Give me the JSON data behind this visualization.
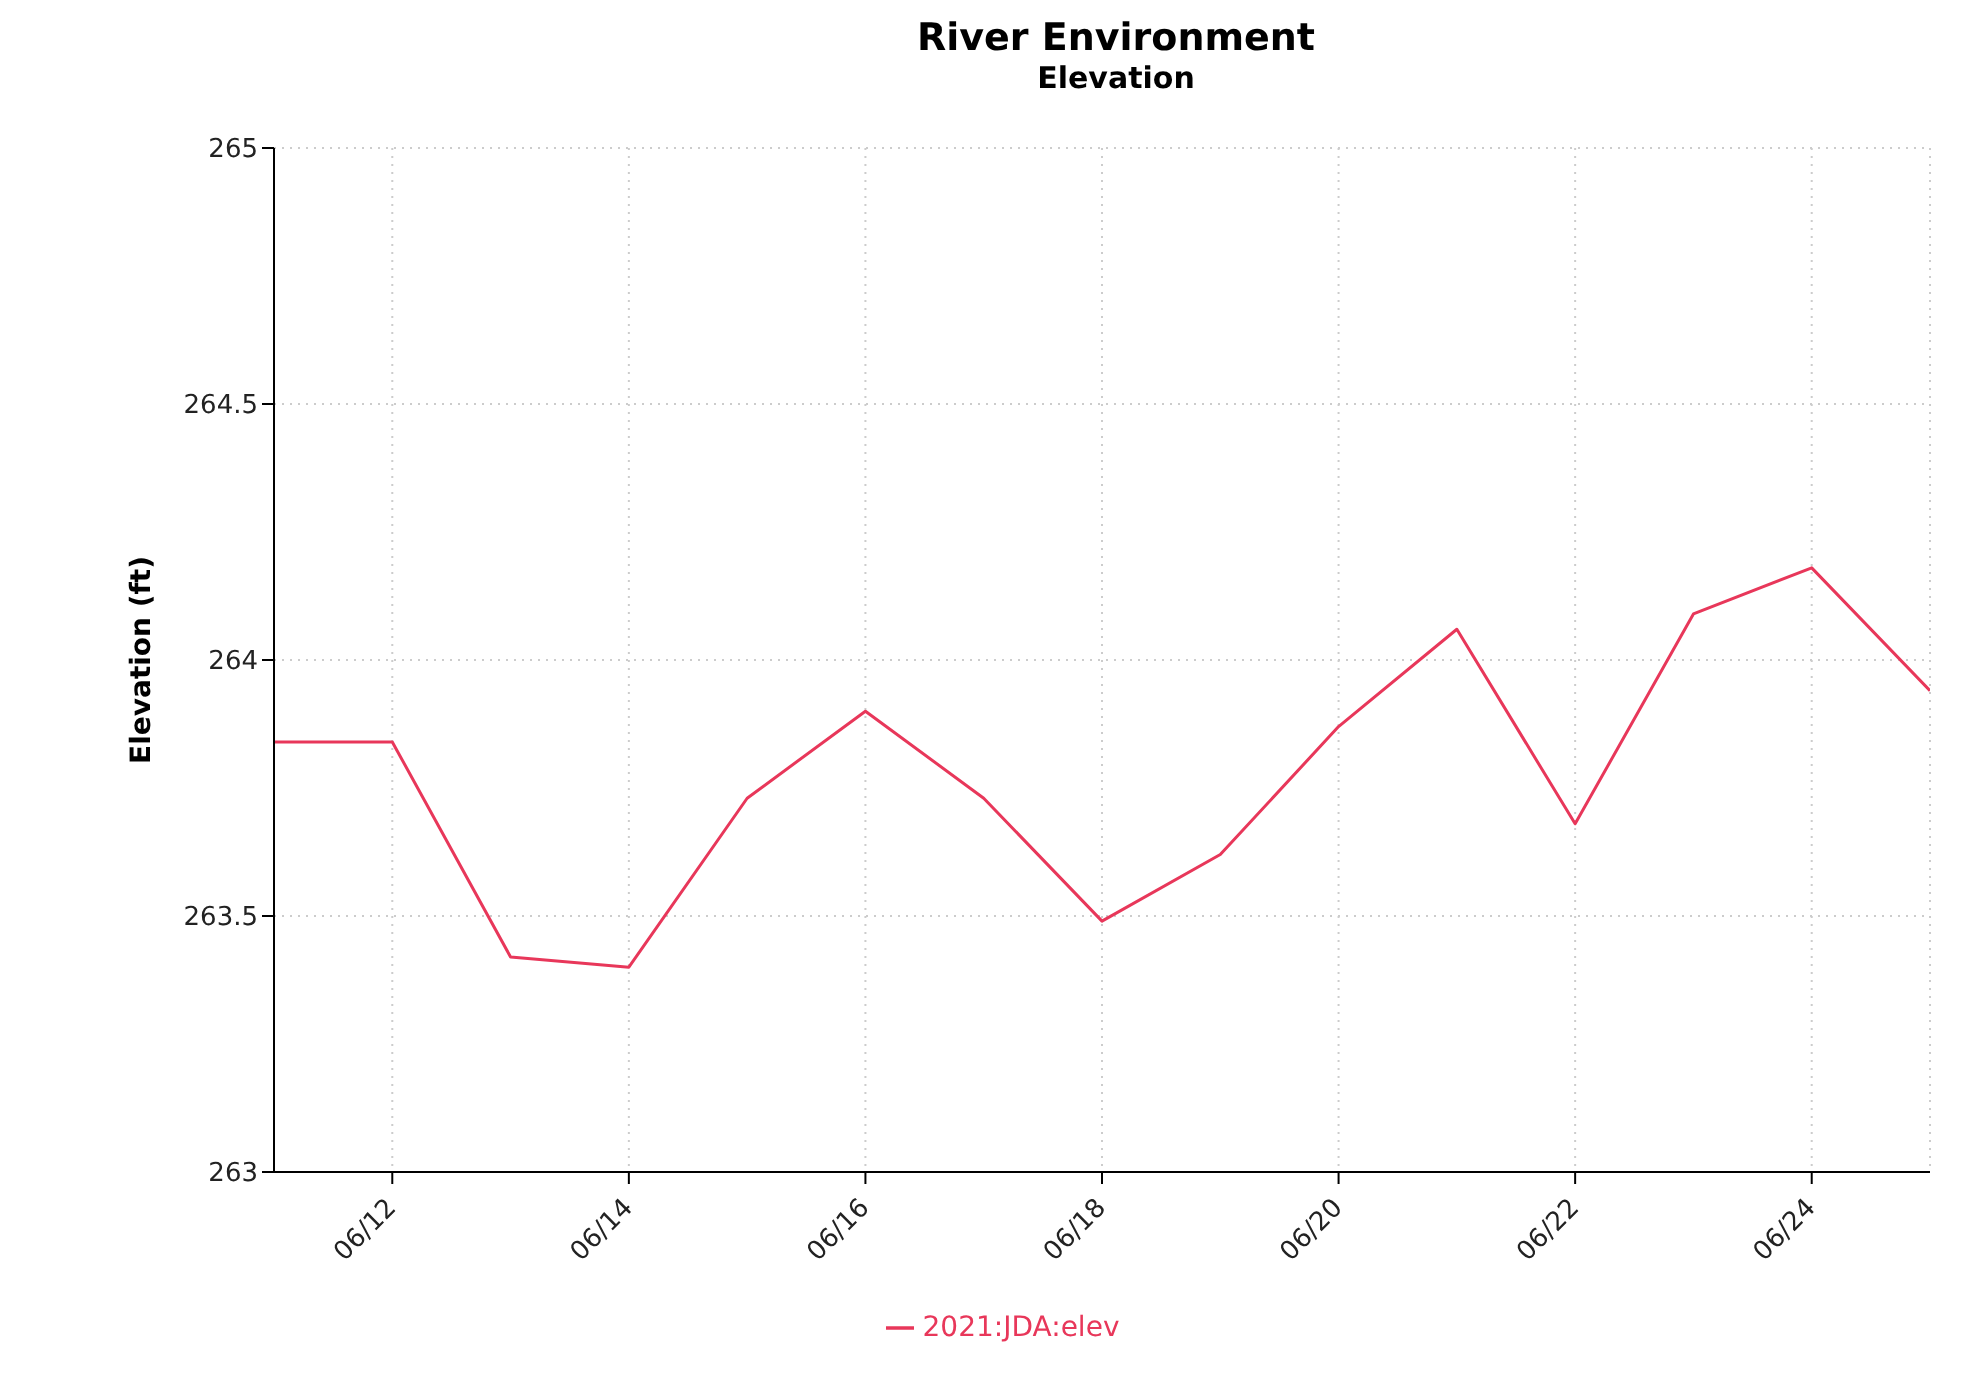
{
  "chart_data": {
    "type": "line",
    "title": "River Environment",
    "subtitle": "Elevation",
    "ylabel": "Elevation (ft)",
    "x": [
      "--06-11",
      "--06-12",
      "--06-13",
      "--06-14",
      "--06-15",
      "--06-16",
      "--06-17",
      "--06-18",
      "--06-19",
      "--06-20",
      "--06-21",
      "--06-22",
      "--06-23",
      "--06-24",
      "--06-25"
    ],
    "series": [
      {
        "name": "2021:JDA:elev",
        "color": "#e8375a",
        "values": [
          263.84,
          263.84,
          263.42,
          263.4,
          263.73,
          263.9,
          263.73,
          263.49,
          263.62,
          263.87,
          264.06,
          263.68,
          264.09,
          264.18,
          263.94
        ]
      }
    ],
    "xlim": [
      "--06-11",
      "--06-25"
    ],
    "xticks": [
      {
        "value": "--06-12",
        "label": "06/12"
      },
      {
        "value": "--06-14",
        "label": "06/14"
      },
      {
        "value": "--06-16",
        "label": "06/16"
      },
      {
        "value": "--06-18",
        "label": "06/18"
      },
      {
        "value": "--06-20",
        "label": "06/20"
      },
      {
        "value": "--06-22",
        "label": "06/22"
      },
      {
        "value": "--06-24",
        "label": "06/24"
      }
    ],
    "ylim": [
      263,
      265
    ],
    "yticks": [
      263,
      263.5,
      264,
      264.5,
      265
    ],
    "grid": true,
    "legend": "bottom",
    "marker": "none",
    "line_style": "solid"
  }
}
